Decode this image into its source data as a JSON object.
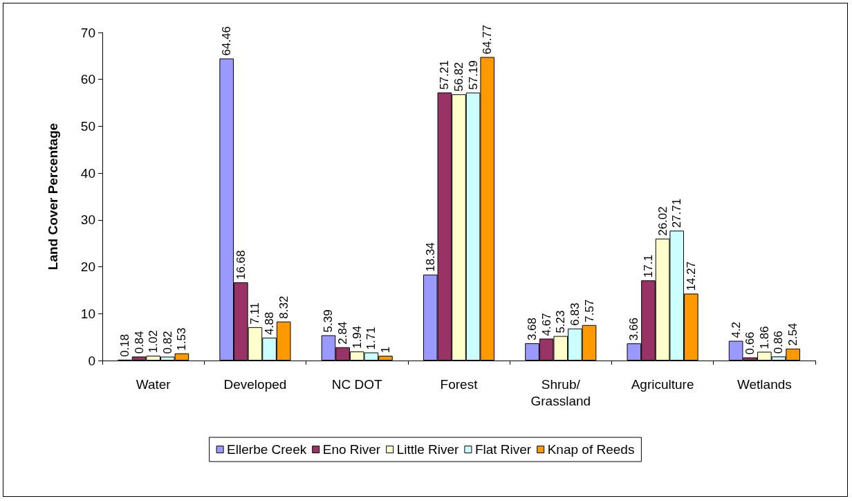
{
  "chart_data": {
    "type": "bar",
    "ylabel": "Land Cover Percentage",
    "categories": [
      "Water",
      "Developed",
      "NC DOT",
      "Forest",
      "Shrub/\nGrassland",
      "Agriculture",
      "Wetlands"
    ],
    "series": [
      {
        "name": "Ellerbe Creek",
        "color": "#9999ff",
        "values": [
          0.18,
          64.46,
          5.39,
          18.34,
          3.68,
          3.66,
          4.2
        ]
      },
      {
        "name": "Eno River",
        "color": "#993366",
        "values": [
          0.84,
          16.68,
          2.84,
          57.21,
          4.67,
          17.1,
          0.66
        ]
      },
      {
        "name": "Little River",
        "color": "#ffffcc",
        "values": [
          1.02,
          7.11,
          1.94,
          56.82,
          5.23,
          26.02,
          1.86
        ]
      },
      {
        "name": "Flat River",
        "color": "#ccffff",
        "values": [
          0.82,
          4.88,
          1.71,
          57.19,
          6.83,
          27.71,
          0.86
        ]
      },
      {
        "name": "Knap of Reeds",
        "color": "#ff9900",
        "values": [
          1.53,
          8.32,
          1,
          64.77,
          7.57,
          14.27,
          2.54
        ]
      }
    ],
    "ylim": [
      0,
      70
    ],
    "yticks": [
      0,
      10,
      20,
      30,
      40,
      50,
      60,
      70
    ],
    "grid": false,
    "legend": "bottom",
    "data_labels": true
  }
}
